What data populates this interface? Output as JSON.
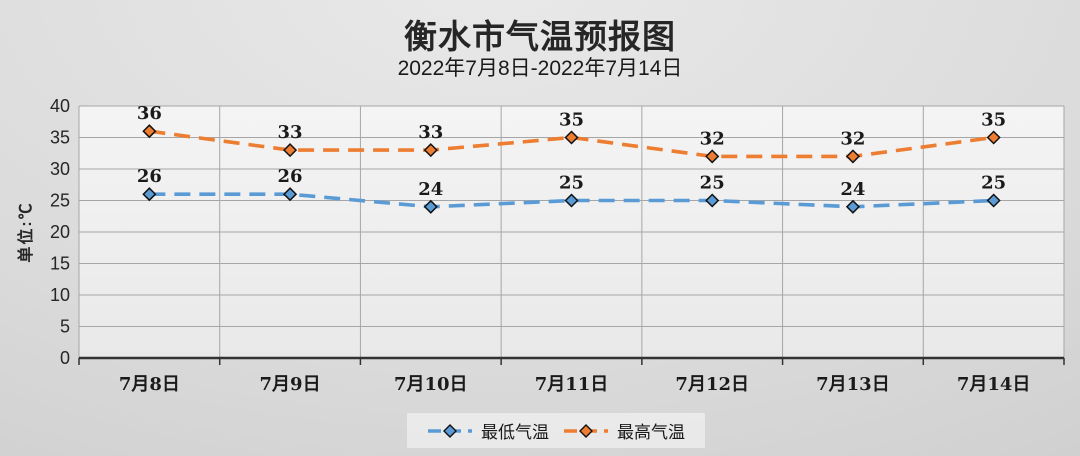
{
  "title": "衡水市气温预报图",
  "subtitle": "2022年7月8日-2022年7月14日",
  "chart_data": {
    "type": "line",
    "categories": [
      "7月8日",
      "7月9日",
      "7月10日",
      "7月11日",
      "7月12日",
      "7月13日",
      "7月14日"
    ],
    "series": [
      {
        "name": "最低气温",
        "values": [
          26,
          26,
          24,
          25,
          25,
          24,
          25
        ],
        "color": "#5B9BD5"
      },
      {
        "name": "最高气温",
        "values": [
          36,
          33,
          33,
          35,
          32,
          32,
          35
        ],
        "color": "#ED7D31"
      }
    ],
    "xlabel": "",
    "ylabel": "单位:℃",
    "ylim": [
      0,
      40
    ],
    "ytick_step": 5,
    "yticks": [
      0,
      5,
      10,
      15,
      20,
      25,
      30,
      35,
      40
    ],
    "grid": true,
    "line_style": "dashed",
    "marker": "diamond",
    "data_labels": true,
    "legend_position": "bottom",
    "colors": {
      "gridline": "#A6A6A6",
      "axis": "#333333",
      "marker_outline": "#111111",
      "plot_background_top": "#F4F4F4",
      "plot_background_bottom": "#E9E9E9",
      "text": "#262626"
    }
  }
}
